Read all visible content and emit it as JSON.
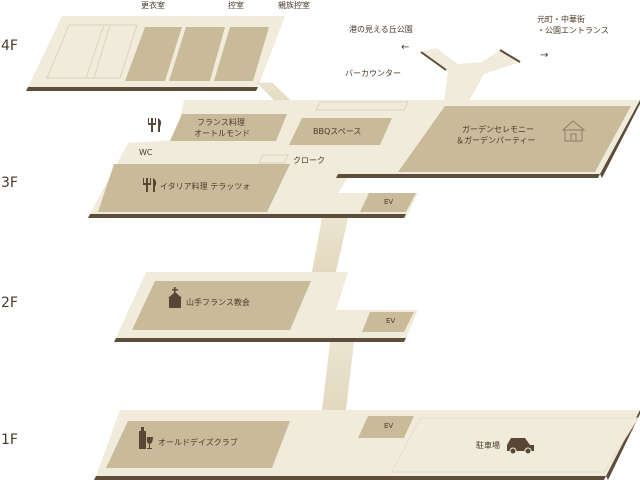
{
  "floors": {
    "f4": "4F",
    "f3": "3F",
    "f2": "2F",
    "f1": "1F"
  },
  "rooms": {
    "kouisitsu": "更衣室",
    "hikaeshitsu": "控室",
    "shinzoku": "親族控室",
    "french_1": "フランス料理",
    "french_2": "オートルモンド",
    "bbq": "BBQスペース",
    "garden_1": "ガーデンセレモニー",
    "garden_2": "＆ガーデンパーティー",
    "wc": "WC",
    "cloak": "クローク",
    "italian": "イタリア料理 テラッツォ",
    "church": "山手フランス教会",
    "olddays": "オールドデイズクラブ",
    "parking": "駐車場",
    "bar": "バーカウンター",
    "harbor_view": "港の見える丘公園",
    "exit_1": "元町・中華街",
    "exit_2": "・公園エントランス"
  },
  "elevator_label": "EV",
  "arrows": {
    "left": "←",
    "right": "→"
  },
  "colors": {
    "floor_slab": "#f1ebdb",
    "floor_edge": "#5e4d3b",
    "room_fill": "#c9bb9a",
    "icon": "#5a4634",
    "text": "#4a3a2a"
  },
  "icons": [
    "restaurant-icon",
    "chapel-icon",
    "wine-icon",
    "car-icon",
    "building-icon"
  ]
}
